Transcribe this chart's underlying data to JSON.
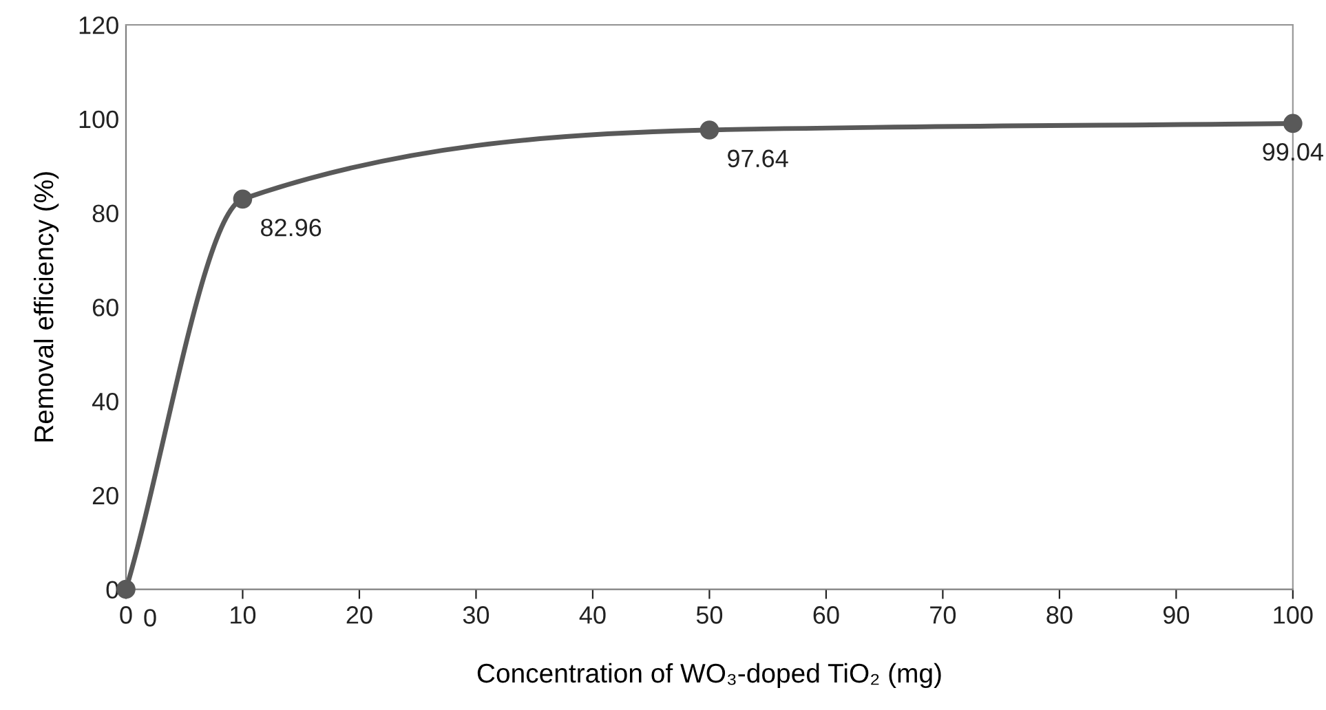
{
  "chart_data": {
    "type": "line",
    "xlabel": "Concentration of WO₃-doped TiO₂ (mg)",
    "ylabel": "Removal efficiency (%)",
    "x": [
      0,
      10,
      50,
      100
    ],
    "series": [
      {
        "color": "#595959",
        "values": [
          0,
          82.96,
          97.64,
          99.04
        ]
      }
    ],
    "xlim": [
      0,
      100
    ],
    "xticks": [
      0,
      10,
      20,
      30,
      40,
      50,
      60,
      70,
      80,
      90,
      100
    ],
    "ylim": [
      0,
      120
    ],
    "yticks": [
      0,
      20,
      40,
      60,
      80,
      100,
      120
    ],
    "data_labels": true,
    "marker": "circle",
    "line_style": "solid",
    "grid": false
  }
}
